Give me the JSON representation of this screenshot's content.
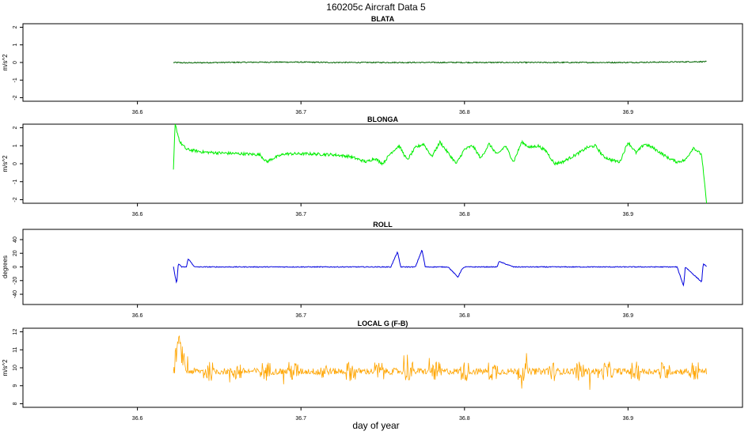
{
  "title": "160205c   Aircraft Data 5",
  "xlabel": "day of year",
  "chart_data": [
    {
      "type": "line",
      "title": "BLATA",
      "ylabel": "m/s^2",
      "color": "#006400",
      "xlim": [
        36.53,
        36.97
      ],
      "ylim": [
        -2.2,
        2.2
      ],
      "xticks": [
        "36.6",
        "36.7",
        "36.8",
        "36.9"
      ],
      "yticks": [
        "-2",
        "-1",
        "0",
        "1",
        "2"
      ],
      "x_start": 36.622,
      "x_end": 36.948,
      "series": [
        {
          "x": [
            36.622,
            36.63,
            36.65,
            36.68,
            36.7,
            36.72,
            36.75,
            36.8,
            36.85,
            36.9,
            36.948
          ],
          "values": [
            0.0,
            -0.02,
            0.0,
            0.02,
            0.02,
            0.0,
            0.0,
            0.0,
            0.0,
            0.0,
            0.05
          ]
        }
      ]
    },
    {
      "type": "line",
      "title": "BLONGA",
      "ylabel": "m/s^2",
      "color": "#00ee00",
      "xlim": [
        36.53,
        36.97
      ],
      "ylim": [
        -2.2,
        2.2
      ],
      "xticks": [
        "36.6",
        "36.7",
        "36.8",
        "36.9"
      ],
      "yticks": [
        "-2",
        "-1",
        "0",
        "1",
        "2"
      ],
      "x_start": 36.622,
      "x_end": 36.948,
      "series": [
        {
          "x": [
            36.622,
            36.623,
            36.626,
            36.63,
            36.64,
            36.65,
            36.665,
            36.675,
            36.679,
            36.683,
            36.69,
            36.705,
            36.72,
            36.73,
            36.74,
            36.745,
            36.75,
            36.755,
            36.76,
            36.765,
            36.77,
            36.775,
            36.78,
            36.785,
            36.79,
            36.795,
            36.8,
            36.805,
            36.81,
            36.815,
            36.82,
            36.825,
            36.83,
            36.835,
            36.84,
            36.845,
            36.85,
            36.855,
            36.86,
            36.87,
            36.875,
            36.88,
            36.885,
            36.89,
            36.895,
            36.9,
            36.905,
            36.91,
            36.915,
            36.92,
            36.925,
            36.93,
            36.935,
            36.94,
            36.945,
            36.948
          ],
          "values": [
            -0.4,
            2.2,
            1.2,
            0.8,
            0.65,
            0.6,
            0.55,
            0.5,
            0.1,
            0.3,
            0.55,
            0.55,
            0.5,
            0.4,
            0.1,
            0.3,
            0.0,
            0.6,
            1.0,
            0.2,
            0.9,
            1.1,
            0.4,
            1.2,
            0.6,
            0.0,
            0.8,
            1.0,
            0.3,
            1.1,
            0.5,
            1.0,
            0.1,
            1.2,
            0.9,
            1.0,
            0.7,
            0.0,
            0.1,
            0.6,
            0.9,
            1.0,
            0.4,
            0.2,
            0.1,
            1.2,
            0.6,
            1.1,
            0.9,
            0.6,
            0.3,
            0.1,
            0.2,
            0.9,
            0.5,
            -2.2
          ]
        }
      ]
    },
    {
      "type": "line",
      "title": "ROLL",
      "ylabel": "degrees",
      "color": "#0000dd",
      "xlim": [
        36.53,
        36.97
      ],
      "ylim": [
        -55,
        55
      ],
      "xticks": [
        "36.6",
        "36.7",
        "36.8",
        "36.9"
      ],
      "yticks": [
        "-40",
        "-20",
        "0",
        "20",
        "40"
      ],
      "x_start": 36.622,
      "x_end": 36.948,
      "series": [
        {
          "x": [
            36.622,
            36.624,
            36.625,
            36.627,
            36.63,
            36.631,
            36.635,
            36.66,
            36.68,
            36.7,
            36.73,
            36.755,
            36.759,
            36.761,
            36.762,
            36.77,
            36.774,
            36.776,
            36.777,
            36.79,
            36.796,
            36.798,
            36.8,
            36.82,
            36.821,
            36.83,
            36.87,
            36.9,
            36.93,
            36.934,
            36.935,
            36.945,
            36.946,
            36.948
          ],
          "values": [
            0,
            -25,
            5,
            0,
            0,
            12,
            0,
            0,
            0,
            0,
            0,
            0,
            22,
            0,
            0,
            0,
            25,
            0,
            0,
            0,
            -15,
            -5,
            0,
            0,
            8,
            0,
            0,
            0,
            0,
            -28,
            0,
            -22,
            5,
            0
          ]
        }
      ]
    },
    {
      "type": "line",
      "title": "LOCAL G (F-B)",
      "ylabel": "m/s^2",
      "color": "#ffa500",
      "xlim": [
        36.53,
        36.97
      ],
      "ylim": [
        7.8,
        12.2
      ],
      "xticks": [
        "36.6",
        "36.7",
        "36.8",
        "36.9"
      ],
      "yticks": [
        "8",
        "9",
        "10",
        "11",
        "12"
      ],
      "x_start": 36.622,
      "x_end": 36.948,
      "series": [
        {
          "x": [
            36.622,
            36.625,
            36.63,
            36.65,
            36.7,
            36.75,
            36.78,
            36.8,
            36.82,
            36.85,
            36.88,
            36.9,
            36.93,
            36.948
          ],
          "values": [
            9.8,
            11.5,
            9.8,
            9.8,
            9.8,
            9.8,
            9.8,
            9.8,
            9.8,
            9.8,
            9.8,
            9.8,
            9.8,
            9.8
          ]
        }
      ]
    }
  ]
}
